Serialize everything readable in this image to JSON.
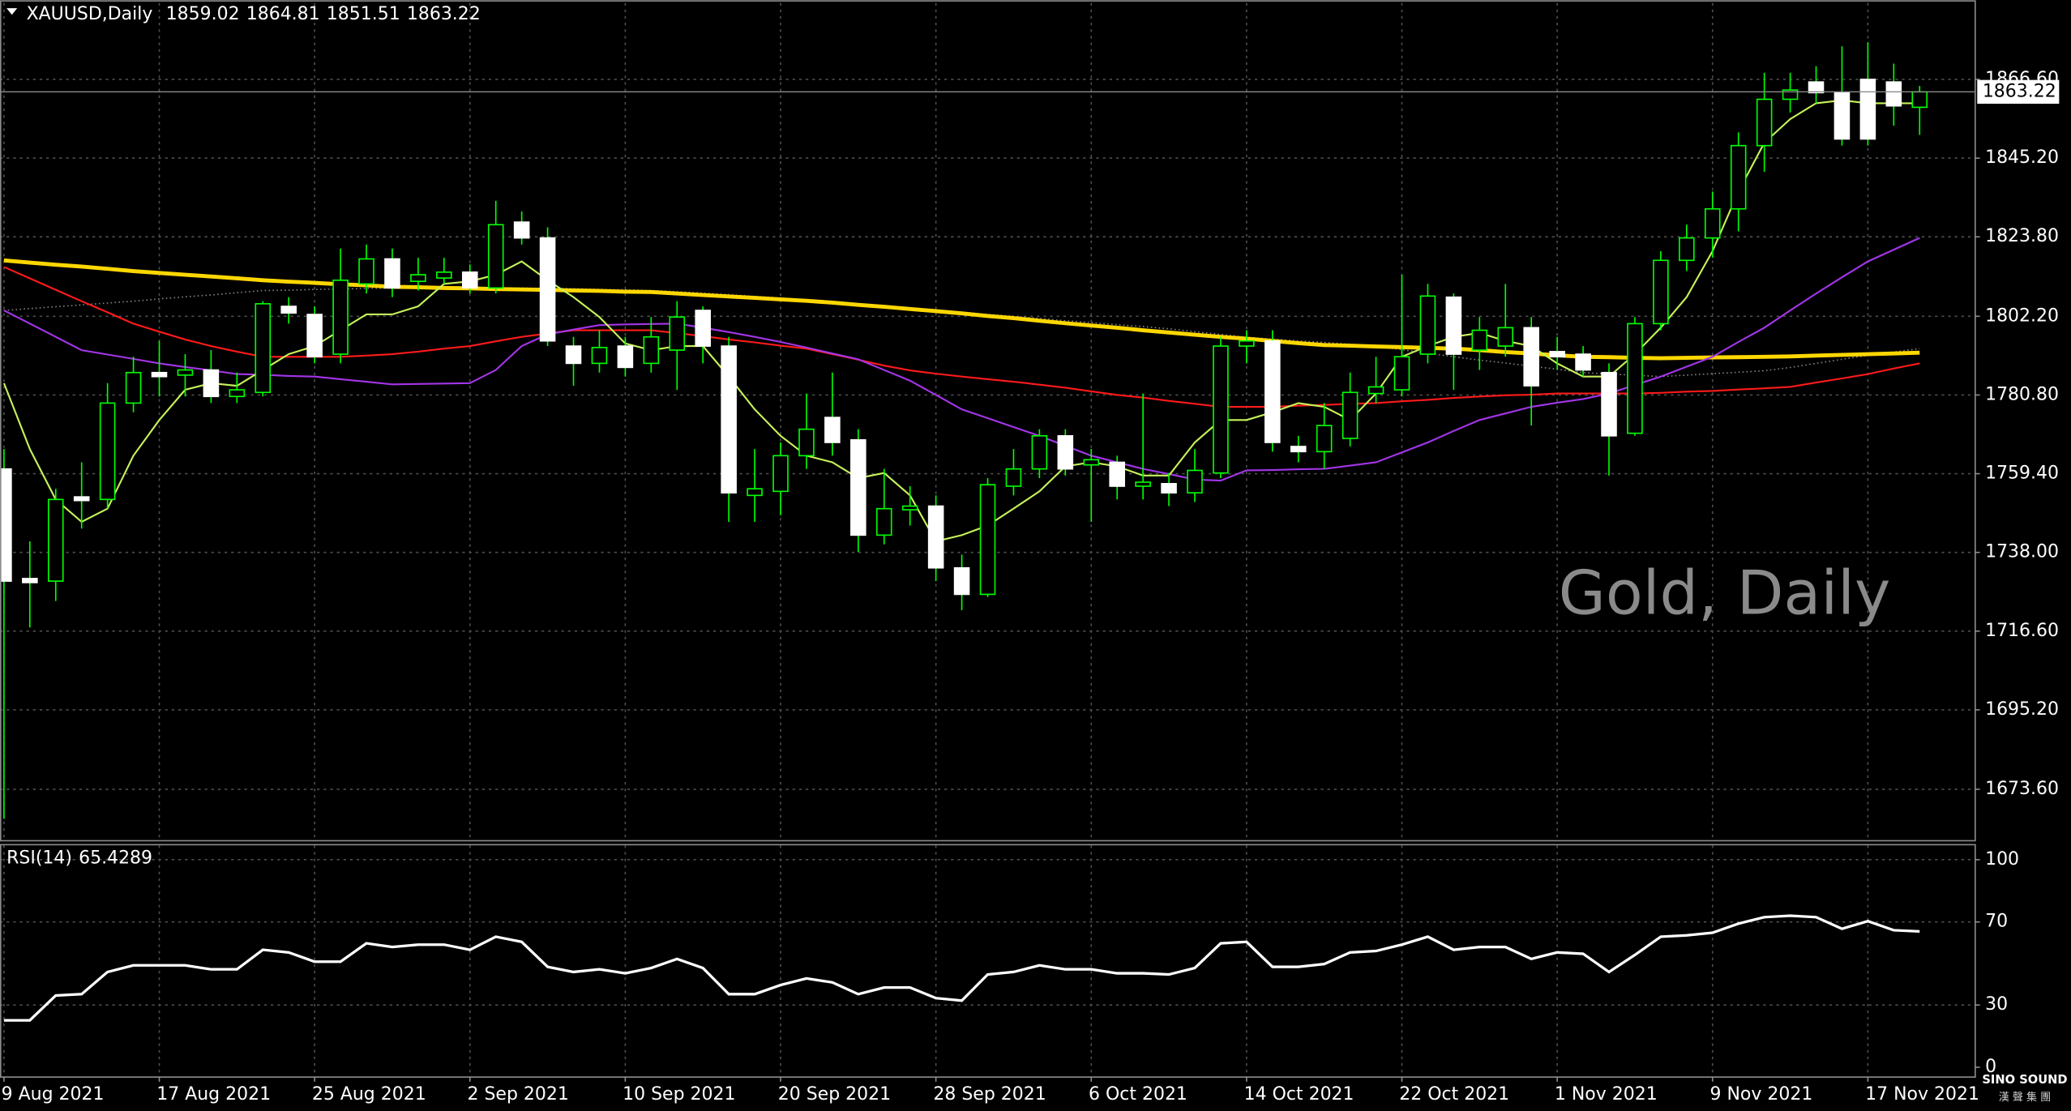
{
  "chart_data": {
    "type": "candlestick",
    "title": "XAUUSD,Daily",
    "watermark": "Gold, Daily",
    "logo": "SINO SOUND",
    "logo_sub": "漢 聲 集 團",
    "categories": [
      "9 Aug 2021",
      null,
      null,
      null,
      null,
      null,
      "17 Aug 2021",
      null,
      null,
      null,
      null,
      null,
      "25 Aug 2021",
      null,
      null,
      null,
      null,
      null,
      "2 Sep 2021",
      null,
      null,
      null,
      null,
      null,
      "10 Sep 2021",
      null,
      null,
      null,
      null,
      null,
      "20 Sep 2021",
      null,
      null,
      null,
      null,
      null,
      "28 Sep 2021",
      null,
      null,
      null,
      null,
      null,
      "6 Oct 2021",
      null,
      null,
      null,
      null,
      null,
      "14 Oct 2021",
      null,
      null,
      null,
      null,
      null,
      "22 Oct 2021",
      null,
      null,
      null,
      null,
      null,
      "1 Nov 2021",
      null,
      null,
      null,
      null,
      null,
      "9 Nov 2021",
      null,
      null,
      null,
      null,
      null,
      "17 Nov 2021",
      null,
      null
    ],
    "open": [
      1760.7,
      1730.9,
      1730.2,
      1753.1,
      1752.4,
      1778.6,
      1786.9,
      1786.2,
      1787.6,
      1780.4,
      1781.5,
      1804.9,
      1802.7,
      1791.9,
      1811.0,
      1817.8,
      1811.7,
      1812.6,
      1814.2,
      1809.9,
      1827.8,
      1823.5,
      1794.1,
      1789.4,
      1794.1,
      1789.4,
      1793.0,
      1803.8,
      1794.1,
      1753.5,
      1754.6,
      1764.3,
      1774.7,
      1768.6,
      1742.7,
      1749.6,
      1750.6,
      1733.8,
      1726.6,
      1756.0,
      1760.7,
      1769.7,
      1761.8,
      1762.5,
      1756.0,
      1756.7,
      1754.2,
      1759.6,
      1794.1,
      1795.5,
      1766.8,
      1765.4,
      1769.0,
      1781.2,
      1782.2,
      1791.9,
      1807.4,
      1793.0,
      1794.1,
      1799.1,
      1792.6,
      1791.9,
      1786.9,
      1770.4,
      1800.2,
      1817.4,
      1823.5,
      1831.4,
      1848.6,
      1861.2,
      1865.9,
      1863.0,
      1866.6,
      1865.9,
      1859.02
    ],
    "high": [
      1766.1,
      1741.0,
      1755.3,
      1762.5,
      1784.0,
      1791.2,
      1795.5,
      1791.9,
      1793.0,
      1786.9,
      1806.3,
      1807.4,
      1804.9,
      1820.6,
      1821.7,
      1820.6,
      1818.1,
      1818.1,
      1816.3,
      1833.6,
      1830.7,
      1826.4,
      1796.6,
      1798.4,
      1796.6,
      1802.0,
      1806.3,
      1804.9,
      1796.6,
      1766.1,
      1767.9,
      1781.2,
      1786.9,
      1771.5,
      1760.7,
      1756.0,
      1753.5,
      1737.4,
      1758.2,
      1766.1,
      1771.5,
      1771.5,
      1766.1,
      1764.3,
      1781.2,
      1759.6,
      1766.1,
      1796.6,
      1798.4,
      1798.4,
      1769.7,
      1778.6,
      1786.9,
      1791.2,
      1813.5,
      1811.0,
      1808.4,
      1802.0,
      1811.0,
      1802.0,
      1796.6,
      1794.1,
      1789.4,
      1802.0,
      1819.9,
      1827.1,
      1836.1,
      1852.2,
      1868.4,
      1868.4,
      1870.2,
      1875.6,
      1876.7,
      1870.9,
      1864.81
    ],
    "low": [
      1665.6,
      1717.6,
      1724.8,
      1744.5,
      1749.9,
      1776.1,
      1780.4,
      1780.4,
      1778.6,
      1778.6,
      1780.4,
      1800.2,
      1789.4,
      1789.4,
      1808.4,
      1807.4,
      1809.2,
      1811.0,
      1808.4,
      1808.4,
      1821.7,
      1794.1,
      1783.3,
      1786.9,
      1785.8,
      1786.9,
      1782.2,
      1789.4,
      1746.3,
      1746.3,
      1748.1,
      1760.7,
      1764.3,
      1738.1,
      1740.2,
      1745.3,
      1730.2,
      1722.3,
      1725.9,
      1753.5,
      1758.2,
      1758.9,
      1746.3,
      1752.4,
      1752.4,
      1750.6,
      1751.7,
      1758.2,
      1789.4,
      1765.4,
      1762.5,
      1760.7,
      1766.8,
      1778.6,
      1780.4,
      1789.4,
      1782.2,
      1787.6,
      1791.2,
      1772.5,
      1787.6,
      1785.8,
      1758.9,
      1769.7,
      1798.4,
      1814.5,
      1818.1,
      1825.3,
      1841.5,
      1857.6,
      1860.1,
      1848.6,
      1848.6,
      1854.0,
      1851.51
    ],
    "close": [
      1730.2,
      1729.8,
      1752.4,
      1752.1,
      1778.6,
      1786.9,
      1785.8,
      1787.6,
      1780.4,
      1782.2,
      1805.6,
      1803.1,
      1791.2,
      1812.0,
      1817.8,
      1809.9,
      1813.5,
      1814.2,
      1809.9,
      1827.1,
      1823.5,
      1795.5,
      1789.4,
      1793.7,
      1788.3,
      1796.6,
      1802.0,
      1794.1,
      1754.2,
      1755.3,
      1764.3,
      1771.5,
      1767.9,
      1742.7,
      1749.9,
      1750.6,
      1733.8,
      1726.6,
      1756.4,
      1760.7,
      1769.7,
      1760.7,
      1763.2,
      1756.0,
      1757.1,
      1754.2,
      1760.3,
      1794.1,
      1795.5,
      1767.9,
      1765.4,
      1772.5,
      1781.5,
      1783.0,
      1791.2,
      1807.7,
      1791.9,
      1798.4,
      1799.1,
      1783.3,
      1791.2,
      1787.6,
      1769.7,
      1800.2,
      1817.4,
      1823.5,
      1831.4,
      1848.6,
      1861.2,
      1863.7,
      1863.0,
      1850.4,
      1850.4,
      1859.4,
      1863.22
    ],
    "up_color": "#00ff00",
    "down_color": "#ffffff",
    "series": [
      {
        "color": "#808080",
        "line_style": "dotted",
        "line_width": 1,
        "values": [
          1803.8,
          1804.3,
          1804.8,
          1805.3,
          1805.8,
          1806.3,
          1806.9,
          1807.5,
          1808.0,
          1808.6,
          1809.2,
          1809.3,
          1809.5,
          1809.6,
          1809.8,
          1809.9,
          1809.9,
          1809.9,
          1809.9,
          1809.9,
          1809.9,
          1809.8,
          1809.7,
          1809.5,
          1809.4,
          1809.2,
          1808.9,
          1808.5,
          1808.1,
          1807.6,
          1807.2,
          1806.7,
          1806.2,
          1805.6,
          1805.0,
          1804.4,
          1803.8,
          1803.3,
          1802.7,
          1802.2,
          1801.6,
          1801.0,
          1800.5,
          1799.9,
          1799.4,
          1798.8,
          1798.0,
          1797.3,
          1796.5,
          1796.0,
          1795.5,
          1795.1,
          1794.6,
          1794.1,
          1793.1,
          1792.2,
          1791.2,
          1790.3,
          1789.5,
          1788.6,
          1787.8,
          1786.9,
          1786.5,
          1786.2,
          1785.8,
          1786.2,
          1786.6,
          1787.0,
          1787.4,
          1788.3,
          1789.4,
          1790.5,
          1791.6,
          1792.5,
          1793.4
        ]
      },
      {
        "color": "#ff1a1a",
        "line_style": "solid",
        "line_width": 1.3,
        "values": [
          1815.6,
          1812.5,
          1809.4,
          1806.3,
          1803.3,
          1800.2,
          1798.0,
          1795.9,
          1794.1,
          1792.6,
          1791.2,
          1791.2,
          1791.2,
          1791.2,
          1791.5,
          1791.9,
          1792.6,
          1793.4,
          1794.1,
          1795.4,
          1796.6,
          1797.5,
          1798.4,
          1798.4,
          1798.4,
          1798.4,
          1797.6,
          1796.8,
          1795.9,
          1795.1,
          1794.2,
          1793.4,
          1791.9,
          1790.4,
          1788.8,
          1787.5,
          1786.6,
          1785.8,
          1785.1,
          1784.4,
          1783.6,
          1782.8,
          1781.8,
          1780.8,
          1780.1,
          1779.2,
          1778.4,
          1777.6,
          1777.6,
          1777.6,
          1777.9,
          1778.1,
          1778.4,
          1778.6,
          1779.1,
          1779.5,
          1780.0,
          1780.4,
          1780.7,
          1780.9,
          1781.2,
          1781.2,
          1781.2,
          1781.2,
          1781.4,
          1781.7,
          1781.9,
          1782.3,
          1782.6,
          1783.0,
          1784.2,
          1785.3,
          1786.5,
          1788.0,
          1789.4
        ]
      },
      {
        "color": "#ffd700",
        "line_style": "solid",
        "line_width": 3,
        "values": [
          1817.4,
          1816.8,
          1816.2,
          1815.7,
          1815.1,
          1814.5,
          1814.0,
          1813.5,
          1813.0,
          1812.5,
          1812.0,
          1811.6,
          1811.3,
          1810.9,
          1810.6,
          1810.2,
          1810.1,
          1809.9,
          1809.8,
          1809.6,
          1809.5,
          1809.4,
          1809.2,
          1809.1,
          1808.9,
          1808.8,
          1808.4,
          1808.0,
          1807.6,
          1807.2,
          1806.8,
          1806.4,
          1805.9,
          1805.3,
          1804.8,
          1804.2,
          1803.6,
          1803.0,
          1802.3,
          1801.7,
          1801.0,
          1800.3,
          1799.7,
          1799.1,
          1798.4,
          1797.8,
          1797.2,
          1796.6,
          1796.1,
          1795.5,
          1794.9,
          1794.4,
          1794.2,
          1794.0,
          1793.8,
          1793.6,
          1793.4,
          1793.0,
          1792.5,
          1792.1,
          1791.6,
          1791.2,
          1791.1,
          1790.9,
          1790.8,
          1790.9,
          1791.0,
          1791.1,
          1791.2,
          1791.3,
          1791.5,
          1791.7,
          1791.9,
          1792.1,
          1792.3
        ]
      },
      {
        "color": "#a335e8",
        "line_style": "solid",
        "line_width": 1.3,
        "values": [
          1803.8,
          1800.2,
          1796.6,
          1793.0,
          1791.8,
          1790.6,
          1789.4,
          1788.4,
          1787.5,
          1786.5,
          1786.3,
          1786.0,
          1785.8,
          1785.1,
          1784.4,
          1783.7,
          1783.8,
          1783.9,
          1784.0,
          1787.6,
          1794.1,
          1797.3,
          1798.6,
          1799.8,
          1800.0,
          1800.1,
          1800.2,
          1799.1,
          1797.9,
          1796.6,
          1795.2,
          1793.7,
          1792.1,
          1790.5,
          1787.6,
          1784.7,
          1780.8,
          1776.9,
          1774.5,
          1772.1,
          1769.7,
          1767.0,
          1764.3,
          1762.5,
          1760.7,
          1759.3,
          1757.8,
          1757.5,
          1760.3,
          1760.4,
          1760.6,
          1760.7,
          1761.6,
          1762.5,
          1765.2,
          1767.9,
          1771.0,
          1774.0,
          1775.8,
          1777.6,
          1778.7,
          1779.7,
          1781.2,
          1783.5,
          1785.8,
          1788.5,
          1791.2,
          1795.2,
          1799.1,
          1803.8,
          1808.4,
          1812.8,
          1817.1,
          1820.3,
          1823.5
        ]
      },
      {
        "color": "#c6f25a",
        "line_style": "solid",
        "line_width": 1.3,
        "values": [
          1784.0,
          1766.1,
          1752.4,
          1746.3,
          1749.9,
          1764.3,
          1774.0,
          1782.2,
          1784.0,
          1783.3,
          1787.6,
          1791.9,
          1794.1,
          1798.4,
          1802.7,
          1802.7,
          1804.9,
          1811.0,
          1811.7,
          1813.5,
          1817.1,
          1812.0,
          1807.4,
          1802.0,
          1794.8,
          1793.0,
          1794.1,
          1794.1,
          1785.8,
          1776.9,
          1769.7,
          1764.3,
          1762.5,
          1758.2,
          1759.6,
          1753.5,
          1741.0,
          1742.7,
          1745.3,
          1749.9,
          1754.6,
          1761.4,
          1762.5,
          1761.4,
          1758.9,
          1758.9,
          1767.9,
          1774.0,
          1774.0,
          1776.1,
          1778.6,
          1777.6,
          1774.0,
          1781.2,
          1791.2,
          1794.1,
          1796.6,
          1797.7,
          1795.5,
          1794.1,
          1789.4,
          1785.8,
          1785.8,
          1791.9,
          1799.1,
          1807.4,
          1819.9,
          1836.1,
          1849.4,
          1855.8,
          1860.1,
          1860.9,
          1860.1,
          1860.1,
          1860.1
        ]
      }
    ],
    "ylim": [
      1659.8,
      1887.4
    ],
    "yticks": [
      {
        "value": 1866.6,
        "label": "1866.60"
      },
      {
        "value": 1845.2,
        "label": "1845.20"
      },
      {
        "value": 1823.8,
        "label": "1823.80"
      },
      {
        "value": 1802.2,
        "label": "1802.20"
      },
      {
        "value": 1780.8,
        "label": "1780.80"
      },
      {
        "value": 1759.4,
        "label": "1759.40"
      },
      {
        "value": 1738.0,
        "label": "1738.00"
      },
      {
        "value": 1716.6,
        "label": "1716.60"
      },
      {
        "value": 1695.2,
        "label": "1695.20"
      },
      {
        "value": 1673.6,
        "label": "1673.60"
      }
    ],
    "grid": true,
    "indicator": {
      "type": "line",
      "label": "RSI(14)",
      "color": "#ffffff",
      "values": [
        22.6,
        22.6,
        34.6,
        35.2,
        45.9,
        49.1,
        49.1,
        49.1,
        47.2,
        47.2,
        56.6,
        55.3,
        50.9,
        50.9,
        59.7,
        57.9,
        59.1,
        59.1,
        56.6,
        62.9,
        60.4,
        48.4,
        45.9,
        47.2,
        45.3,
        47.8,
        52.2,
        47.8,
        35.2,
        35.2,
        39.6,
        42.8,
        40.9,
        35.2,
        38.4,
        38.4,
        33.3,
        32.1,
        44.7,
        45.9,
        49.1,
        47.2,
        47.2,
        45.3,
        45.3,
        44.7,
        47.8,
        59.7,
        60.4,
        48.4,
        48.4,
        49.7,
        55.3,
        56.0,
        59.1,
        62.9,
        56.6,
        57.9,
        57.9,
        52.2,
        55.3,
        54.7,
        45.9,
        54.1,
        62.9,
        63.5,
        64.8,
        69.2,
        72.3,
        73.0,
        72.3,
        66.7,
        70.4,
        66.0,
        65.4289
      ],
      "ylim": [
        -4.4,
        106.9
      ],
      "yticks": [
        100,
        70,
        30,
        0
      ]
    }
  }
}
